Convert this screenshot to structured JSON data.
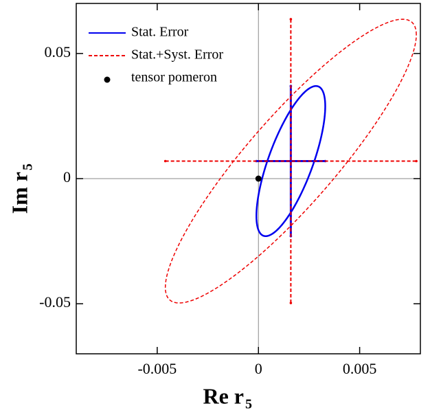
{
  "chart_data": {
    "type": "scatter",
    "xlabel": "Re r",
    "xlabel_subscript": "5",
    "ylabel": "Im r",
    "ylabel_subscript": "5",
    "xlim": [
      -0.009,
      0.008
    ],
    "xticks": [
      -0.005,
      0,
      0.005
    ],
    "ylim": [
      -0.07,
      0.07
    ],
    "yticks": [
      -0.05,
      0,
      0.05
    ],
    "zero_lines": true,
    "legend": "upper left",
    "series": [
      {
        "name": "Stat. Error",
        "color": "#0000ee",
        "style": "solid",
        "x": 0.0016,
        "y": 0.007,
        "xerr": 0.0017,
        "yerr": 0.03,
        "correlation": 0.73
      },
      {
        "name": "Stat.+Syst. Error",
        "color": "#ee0000",
        "style": "dashed",
        "x": 0.0016,
        "y": 0.007,
        "xerr": 0.0062,
        "yerr": 0.0567,
        "correlation": 0.89
      },
      {
        "name": "tensor pomeron",
        "color": "#000000",
        "style": "point",
        "x": 0,
        "y": 0
      }
    ]
  }
}
